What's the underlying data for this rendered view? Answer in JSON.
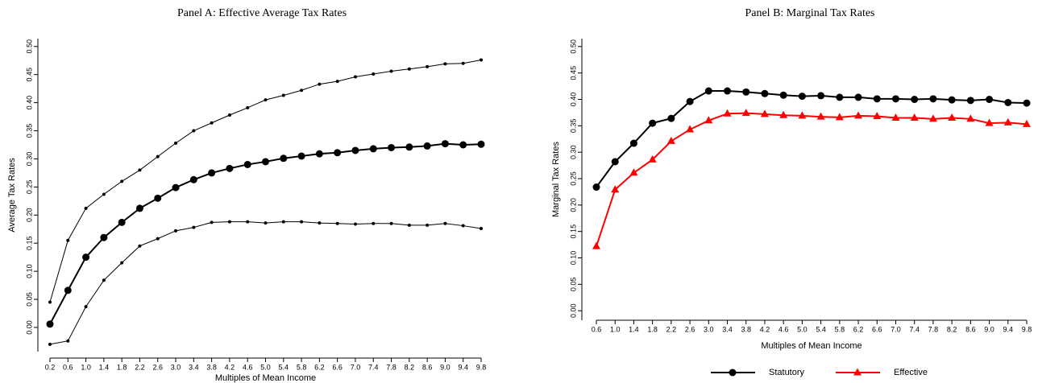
{
  "chart_data": [
    {
      "type": "line",
      "title": "Panel A: Effective Average Tax Rates",
      "x_label": "Multiples of Mean Income",
      "y_label": "Average Tax Rates",
      "categories": [
        "0.2",
        "0.6",
        "1.0",
        "1.4",
        "1.8",
        "2.2",
        "2.6",
        "3.0",
        "3.4",
        "3.8",
        "4.2",
        "4.6",
        "5.0",
        "5.4",
        "5.8",
        "6.2",
        "6.6",
        "7.0",
        "7.4",
        "7.8",
        "8.2",
        "8.6",
        "9.0",
        "9.4",
        "9.8"
      ],
      "series": [
        {
          "color": "#000000",
          "marker": "dot",
          "values": [
            0.045,
            0.155,
            0.212,
            0.237,
            0.26,
            0.28,
            0.304,
            0.328,
            0.35,
            0.364,
            0.378,
            0.391,
            0.405,
            0.413,
            0.422,
            0.433,
            0.438,
            0.446,
            0.451,
            0.456,
            0.46,
            0.464,
            0.469,
            0.47,
            0.476
          ]
        },
        {
          "color": "#000000",
          "marker": "circle",
          "values": [
            0.006,
            0.066,
            0.125,
            0.16,
            0.187,
            0.212,
            0.23,
            0.249,
            0.263,
            0.275,
            0.283,
            0.29,
            0.295,
            0.301,
            0.305,
            0.309,
            0.311,
            0.315,
            0.318,
            0.32,
            0.321,
            0.323,
            0.327,
            0.325,
            0.326
          ]
        },
        {
          "color": "#000000",
          "marker": "dot",
          "values": [
            -0.03,
            -0.024,
            0.037,
            0.084,
            0.115,
            0.145,
            0.158,
            0.172,
            0.178,
            0.187,
            0.188,
            0.188,
            0.186,
            0.188,
            0.188,
            0.186,
            0.185,
            0.184,
            0.185,
            0.185,
            0.182,
            0.182,
            0.185,
            0.181,
            0.176
          ]
        }
      ],
      "ylim": [
        -0.043,
        0.514
      ],
      "yticks": [
        {
          "value": 0,
          "label": "0.00"
        },
        {
          "value": 0.05,
          "label": "0.05"
        },
        {
          "value": 0.1,
          "label": "0.10"
        },
        {
          "value": 0.15,
          "label": "0.15"
        },
        {
          "value": 0.2,
          "label": "0.20"
        },
        {
          "value": 0.25,
          "label": "0.25"
        },
        {
          "value": 0.3,
          "label": "0.30"
        },
        {
          "value": 0.35,
          "label": "0.35"
        },
        {
          "value": 0.4,
          "label": "0.40"
        },
        {
          "value": 0.45,
          "label": "0.45"
        },
        {
          "value": 0.5,
          "label": "0.50"
        }
      ]
    },
    {
      "type": "line",
      "title": "Panel B: Marginal Tax Rates",
      "x_label": "Multiples of Mean Income",
      "y_label": "Marginal Tax Rates",
      "categories": [
        "0.6",
        "1.0",
        "1.4",
        "1.8",
        "2.2",
        "2.6",
        "3.0",
        "3.4",
        "3.8",
        "4.2",
        "4.6",
        "5.0",
        "5.4",
        "5.8",
        "6.2",
        "6.6",
        "7.0",
        "7.4",
        "7.8",
        "8.2",
        "8.6",
        "9.0",
        "9.4",
        "9.8"
      ],
      "series": [
        {
          "name": "Statutory",
          "color": "#000000",
          "marker": "circle",
          "values": [
            0.234,
            0.282,
            0.317,
            0.355,
            0.364,
            0.396,
            0.416,
            0.416,
            0.414,
            0.411,
            0.408,
            0.406,
            0.407,
            0.404,
            0.404,
            0.401,
            0.401,
            0.4,
            0.401,
            0.399,
            0.398,
            0.4,
            0.394,
            0.393
          ]
        },
        {
          "name": "Effective",
          "color": "#ff0000",
          "marker": "triangle",
          "values": [
            0.122,
            0.229,
            0.261,
            0.286,
            0.321,
            0.343,
            0.36,
            0.373,
            0.374,
            0.372,
            0.37,
            0.369,
            0.367,
            0.366,
            0.369,
            0.368,
            0.365,
            0.365,
            0.363,
            0.365,
            0.363,
            0.355,
            0.356,
            0.353
          ]
        }
      ],
      "ylim": [
        -0.018,
        0.515
      ],
      "yticks": [
        {
          "value": 0,
          "label": "0.00"
        },
        {
          "value": 0.05,
          "label": "0.05"
        },
        {
          "value": 0.1,
          "label": "0.10"
        },
        {
          "value": 0.15,
          "label": "0.15"
        },
        {
          "value": 0.2,
          "label": "0.20"
        },
        {
          "value": 0.25,
          "label": "0.25"
        },
        {
          "value": 0.3,
          "label": "0.30"
        },
        {
          "value": 0.35,
          "label": "0.35"
        },
        {
          "value": 0.4,
          "label": "0.40"
        },
        {
          "value": 0.45,
          "label": "0.45"
        },
        {
          "value": 0.5,
          "label": "0.50"
        }
      ],
      "legend": "bottom"
    }
  ]
}
